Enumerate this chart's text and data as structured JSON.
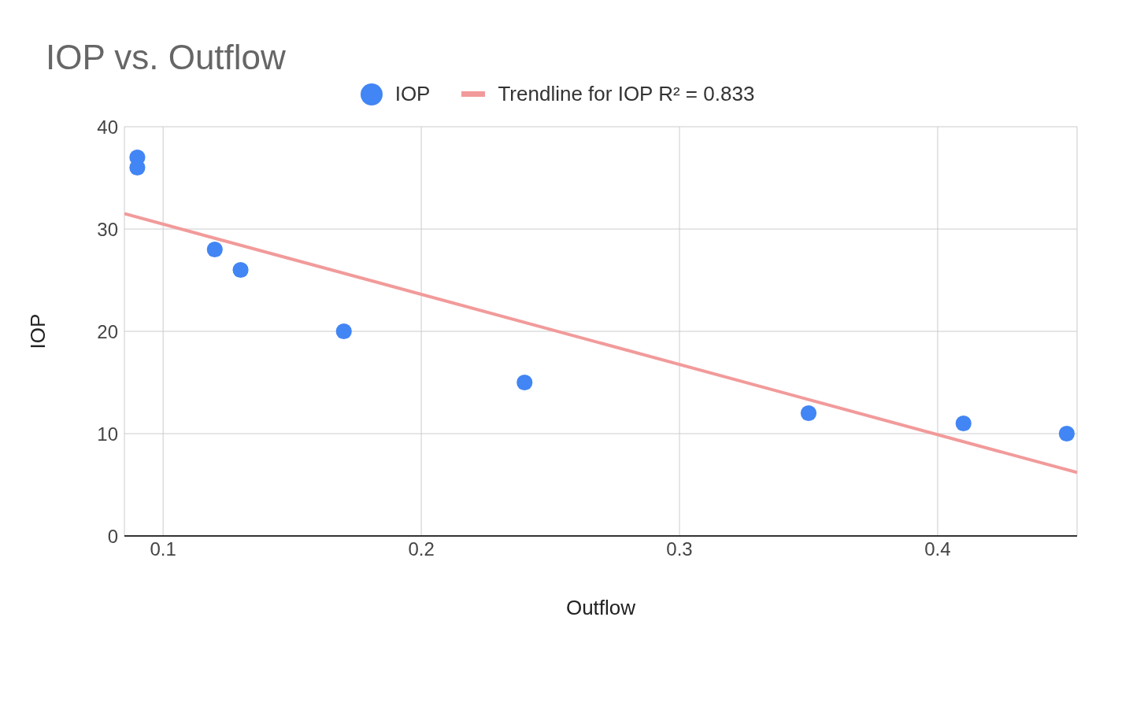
{
  "chart_data": {
    "type": "scatter",
    "title": "IOP vs. Outflow",
    "xlabel": "Outflow",
    "ylabel": "IOP",
    "series": [
      {
        "name": "IOP",
        "type": "scatter",
        "marker": "circle",
        "color": "#4285f4",
        "x": [
          0.09,
          0.09,
          0.12,
          0.13,
          0.17,
          0.24,
          0.35,
          0.41,
          0.45
        ],
        "values": [
          37,
          36,
          28,
          26,
          20,
          15,
          12,
          11,
          10
        ]
      },
      {
        "name": "Trendline for IOP R² = 0.833",
        "type": "line",
        "color": "#f29a9a",
        "x": [
          0.085,
          0.454
        ],
        "values": [
          31.5,
          6.2
        ]
      }
    ],
    "xlim": [
      0.085,
      0.454
    ],
    "xticks": [
      0.1,
      0.2,
      0.3,
      0.4
    ],
    "ylim": [
      0,
      40
    ],
    "yticks": [
      0,
      10,
      20,
      30,
      40
    ],
    "grid": true,
    "legend": "top",
    "line_style": "solid"
  }
}
